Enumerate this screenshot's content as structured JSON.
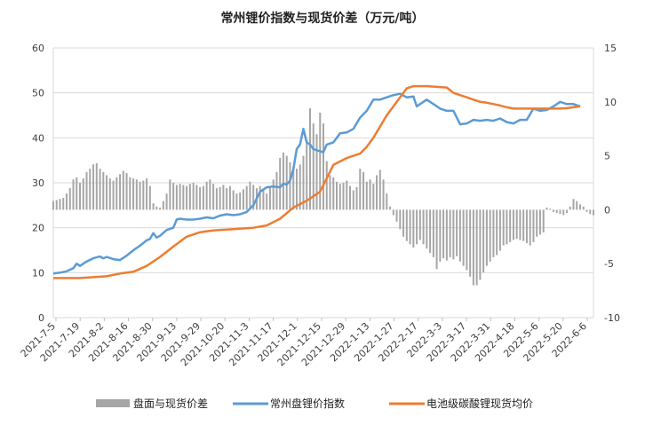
{
  "chart_data": {
    "type": "combo",
    "title": "常州锂价指数与现货价差（万元/吨）",
    "x_tick_labels": [
      "2021-7-5",
      "2021-7-19",
      "2021-8-2",
      "2021-8-16",
      "2021-8-30",
      "2021-9-13",
      "2021-9-29",
      "2021-10-20",
      "2021-11-3",
      "2021-11-17",
      "2021-12-1",
      "2021-12-15",
      "2021-12-29",
      "2022-1-13",
      "2022-1-27",
      "2022-2-17",
      "2022-3-3",
      "2022-3-17",
      "2022-3-31",
      "2022-4-18",
      "2022-5-6",
      "2022-5-20",
      "2022-6-6"
    ],
    "y_left": {
      "min": 0,
      "max": 60,
      "ticks": [
        0,
        10,
        20,
        30,
        40,
        50,
        60
      ]
    },
    "y_right": {
      "min": -10,
      "max": 15,
      "ticks": [
        -10,
        -5,
        0,
        5,
        10,
        15
      ]
    },
    "grid": true,
    "legend_position": "bottom",
    "series": [
      {
        "name": "盘面与现货价差",
        "kind": "bar",
        "axis": "right",
        "color": "#a6a6a6",
        "points": [
          [
            0,
            0.8
          ],
          [
            0.5,
            0.9
          ],
          [
            1,
            1.0
          ],
          [
            1.5,
            1.1
          ],
          [
            2,
            1.5
          ],
          [
            2.5,
            2.0
          ],
          [
            3,
            2.8
          ],
          [
            3.5,
            3.0
          ],
          [
            4,
            2.5
          ],
          [
            4.5,
            2.9
          ],
          [
            5,
            3.5
          ],
          [
            5.5,
            3.8
          ],
          [
            6,
            4.2
          ],
          [
            6.5,
            4.3
          ],
          [
            7,
            3.8
          ],
          [
            7.5,
            3.5
          ],
          [
            8,
            3.2
          ],
          [
            8.5,
            2.9
          ],
          [
            9,
            2.7
          ],
          [
            9.5,
            3.0
          ],
          [
            10,
            3.3
          ],
          [
            10.5,
            3.6
          ],
          [
            11,
            3.4
          ],
          [
            11.5,
            3.0
          ],
          [
            12,
            2.9
          ],
          [
            12.5,
            2.8
          ],
          [
            13,
            2.6
          ],
          [
            13.5,
            2.7
          ],
          [
            14,
            2.9
          ],
          [
            14.5,
            2.2
          ],
          [
            15,
            0.6
          ],
          [
            15.5,
            0.3
          ],
          [
            16,
            0.2
          ],
          [
            16.5,
            0.8
          ],
          [
            17,
            1.5
          ],
          [
            17.5,
            2.8
          ],
          [
            18,
            2.5
          ],
          [
            18.5,
            2.3
          ],
          [
            19,
            2.4
          ],
          [
            19.5,
            2.3
          ],
          [
            20,
            2.2
          ],
          [
            20.5,
            2.4
          ],
          [
            21,
            2.5
          ],
          [
            21.5,
            2.3
          ],
          [
            22,
            2.1
          ],
          [
            22.5,
            2.2
          ],
          [
            23,
            2.6
          ],
          [
            23.5,
            2.8
          ],
          [
            24,
            2.4
          ],
          [
            24.5,
            2.0
          ],
          [
            25,
            2.1
          ],
          [
            25.5,
            2.3
          ],
          [
            26,
            2.0
          ],
          [
            26.5,
            2.2
          ],
          [
            27,
            1.8
          ],
          [
            27.5,
            1.5
          ],
          [
            28,
            1.6
          ],
          [
            28.5,
            1.9
          ],
          [
            29,
            2.2
          ],
          [
            29.5,
            2.6
          ],
          [
            30,
            2.3
          ],
          [
            30.5,
            2.0
          ],
          [
            31,
            2.2
          ],
          [
            31.5,
            1.8
          ],
          [
            32,
            1.5
          ],
          [
            32.5,
            2.2
          ],
          [
            33,
            2.8
          ],
          [
            33.5,
            3.5
          ],
          [
            34,
            4.8
          ],
          [
            34.5,
            5.3
          ],
          [
            35,
            5.0
          ],
          [
            35.5,
            4.4
          ],
          [
            36,
            4.0
          ],
          [
            36.5,
            3.8
          ],
          [
            37,
            4.2
          ],
          [
            37.5,
            5.0
          ],
          [
            38,
            6.5
          ],
          [
            38.5,
            9.4
          ],
          [
            39,
            8.0
          ],
          [
            39.5,
            7.0
          ],
          [
            40,
            9.0
          ],
          [
            40.5,
            8.0
          ],
          [
            41,
            4.5
          ],
          [
            41.5,
            3.2
          ],
          [
            42,
            3.0
          ],
          [
            42.5,
            2.6
          ],
          [
            43,
            2.4
          ],
          [
            43.5,
            2.5
          ],
          [
            44,
            2.7
          ],
          [
            44.5,
            2.2
          ],
          [
            45,
            1.8
          ],
          [
            45.5,
            2.1
          ],
          [
            46,
            3.8
          ],
          [
            46.5,
            3.5
          ],
          [
            47,
            2.6
          ],
          [
            47.5,
            2.8
          ],
          [
            48,
            2.4
          ],
          [
            48.5,
            3.2
          ],
          [
            49,
            3.7
          ],
          [
            49.5,
            2.8
          ],
          [
            50,
            1.5
          ],
          [
            50.5,
            0.3
          ],
          [
            51,
            -0.5
          ],
          [
            51.5,
            -1.1
          ],
          [
            52,
            -1.8
          ],
          [
            52.5,
            -2.5
          ],
          [
            53,
            -2.9
          ],
          [
            53.5,
            -3.2
          ],
          [
            54,
            -3.5
          ],
          [
            54.5,
            -3.2
          ],
          [
            55,
            -2.8
          ],
          [
            55.5,
            -3.2
          ],
          [
            56,
            -3.6
          ],
          [
            56.5,
            -4.0
          ],
          [
            57,
            -4.4
          ],
          [
            57.5,
            -5.5
          ],
          [
            58,
            -4.8
          ],
          [
            58.5,
            -4.5
          ],
          [
            59,
            -4.7
          ],
          [
            59.5,
            -4.4
          ],
          [
            60,
            -4.6
          ],
          [
            60.5,
            -4.3
          ],
          [
            61,
            -4.8
          ],
          [
            61.5,
            -5.2
          ],
          [
            62,
            -5.6
          ],
          [
            62.5,
            -6.2
          ],
          [
            63,
            -7.0
          ],
          [
            63.5,
            -7.0
          ],
          [
            64,
            -6.5
          ],
          [
            64.5,
            -5.8
          ],
          [
            65,
            -5.2
          ],
          [
            65.5,
            -4.8
          ],
          [
            66,
            -4.4
          ],
          [
            66.5,
            -4.2
          ],
          [
            67,
            -3.8
          ],
          [
            67.5,
            -3.3
          ],
          [
            68,
            -3.2
          ],
          [
            68.5,
            -3.0
          ],
          [
            69,
            -2.8
          ],
          [
            69.5,
            -2.7
          ],
          [
            70,
            -2.8
          ],
          [
            70.5,
            -2.9
          ],
          [
            71,
            -3.1
          ],
          [
            71.5,
            -3.3
          ],
          [
            72,
            -3.0
          ],
          [
            72.5,
            -2.5
          ],
          [
            73,
            -2.3
          ],
          [
            73.5,
            -2.1
          ],
          [
            74,
            0.2
          ],
          [
            74.5,
            0.1
          ],
          [
            75,
            -0.2
          ],
          [
            75.5,
            -0.3
          ],
          [
            76,
            -0.4
          ],
          [
            76.5,
            -0.5
          ],
          [
            77,
            -0.3
          ],
          [
            77.5,
            0.3
          ],
          [
            78,
            1.0
          ],
          [
            78.5,
            0.8
          ],
          [
            79,
            0.5
          ],
          [
            79.5,
            0.3
          ],
          [
            80,
            -0.2
          ],
          [
            80.5,
            -0.4
          ],
          [
            81,
            -0.5
          ]
        ]
      },
      {
        "name": "常州盘锂价指数",
        "kind": "line",
        "axis": "left",
        "color": "#5b9bd5",
        "points": [
          [
            0,
            9.8
          ],
          [
            1,
            10.0
          ],
          [
            2,
            10.3
          ],
          [
            3,
            11.0
          ],
          [
            3.5,
            12.0
          ],
          [
            4,
            11.5
          ],
          [
            5,
            12.5
          ],
          [
            6,
            13.2
          ],
          [
            7,
            13.6
          ],
          [
            7.5,
            13.2
          ],
          [
            8,
            13.5
          ],
          [
            9,
            13.0
          ],
          [
            10,
            12.8
          ],
          [
            11,
            13.8
          ],
          [
            12,
            15.0
          ],
          [
            13,
            16.0
          ],
          [
            14,
            17.2
          ],
          [
            14.5,
            17.5
          ],
          [
            15,
            18.8
          ],
          [
            15.5,
            17.8
          ],
          [
            16,
            18.2
          ],
          [
            17,
            19.5
          ],
          [
            18,
            20.0
          ],
          [
            18.5,
            21.8
          ],
          [
            19,
            22.0
          ],
          [
            20,
            21.8
          ],
          [
            21,
            21.8
          ],
          [
            22,
            22.0
          ],
          [
            23,
            22.3
          ],
          [
            24,
            22.1
          ],
          [
            25,
            22.7
          ],
          [
            26,
            23.0
          ],
          [
            27,
            22.8
          ],
          [
            28,
            23.0
          ],
          [
            29,
            23.5
          ],
          [
            30,
            25.0
          ],
          [
            31,
            28.0
          ],
          [
            32,
            29.0
          ],
          [
            33,
            29.2
          ],
          [
            34,
            29.0
          ],
          [
            34.5,
            29.8
          ],
          [
            35,
            29.6
          ],
          [
            35.5,
            30.5
          ],
          [
            36,
            33.0
          ],
          [
            36.5,
            37.5
          ],
          [
            37,
            38.5
          ],
          [
            37.5,
            42.0
          ],
          [
            38,
            39.0
          ],
          [
            38.5,
            38.5
          ],
          [
            39,
            37.5
          ],
          [
            40,
            37.0
          ],
          [
            40.5,
            36.8
          ],
          [
            41,
            38.5
          ],
          [
            42,
            39.0
          ],
          [
            43,
            41.0
          ],
          [
            44,
            41.2
          ],
          [
            45,
            42.0
          ],
          [
            46,
            44.5
          ],
          [
            47,
            46.0
          ],
          [
            48,
            48.5
          ],
          [
            49,
            48.5
          ],
          [
            50,
            49.0
          ],
          [
            51,
            49.5
          ],
          [
            52,
            49.8
          ],
          [
            53,
            49.0
          ],
          [
            54,
            49.2
          ],
          [
            54.5,
            47.0
          ],
          [
            55,
            47.5
          ],
          [
            56,
            48.5
          ],
          [
            57,
            47.5
          ],
          [
            58,
            46.5
          ],
          [
            59,
            46.0
          ],
          [
            60,
            46.0
          ],
          [
            61,
            43.0
          ],
          [
            62,
            43.2
          ],
          [
            63,
            44.0
          ],
          [
            64,
            43.8
          ],
          [
            65,
            44.0
          ],
          [
            66,
            43.8
          ],
          [
            67,
            44.3
          ],
          [
            68,
            43.5
          ],
          [
            69,
            43.2
          ],
          [
            70,
            44.0
          ],
          [
            71,
            44.0
          ],
          [
            72,
            46.5
          ],
          [
            73,
            46.0
          ],
          [
            74,
            46.2
          ],
          [
            75,
            47.0
          ],
          [
            76,
            48.0
          ],
          [
            77,
            47.5
          ],
          [
            78,
            47.5
          ],
          [
            79,
            47.0
          ]
        ]
      },
      {
        "name": "电池级碳酸锂现货均价",
        "kind": "line",
        "axis": "left",
        "color": "#ed7d31",
        "points": [
          [
            0,
            8.8
          ],
          [
            2,
            8.8
          ],
          [
            4,
            8.8
          ],
          [
            6,
            9.0
          ],
          [
            8,
            9.2
          ],
          [
            10,
            9.8
          ],
          [
            12,
            10.2
          ],
          [
            14,
            11.5
          ],
          [
            16,
            13.5
          ],
          [
            18,
            15.8
          ],
          [
            20,
            18.0
          ],
          [
            22,
            19.0
          ],
          [
            24,
            19.4
          ],
          [
            26,
            19.6
          ],
          [
            28,
            19.8
          ],
          [
            30,
            20.0
          ],
          [
            32,
            20.5
          ],
          [
            34,
            22.0
          ],
          [
            36,
            24.5
          ],
          [
            38,
            26.0
          ],
          [
            40,
            28.0
          ],
          [
            41,
            31.0
          ],
          [
            42,
            34.0
          ],
          [
            44,
            35.5
          ],
          [
            46,
            36.5
          ],
          [
            47,
            38.0
          ],
          [
            48,
            40.0
          ],
          [
            50,
            45.0
          ],
          [
            52,
            49.0
          ],
          [
            53,
            51.0
          ],
          [
            54,
            51.5
          ],
          [
            56,
            51.5
          ],
          [
            58,
            51.3
          ],
          [
            59,
            51.2
          ],
          [
            60,
            50.0
          ],
          [
            61,
            49.5
          ],
          [
            62,
            49.0
          ],
          [
            63,
            48.5
          ],
          [
            64,
            48.0
          ],
          [
            65,
            47.8
          ],
          [
            66,
            47.5
          ],
          [
            67,
            47.2
          ],
          [
            68,
            46.8
          ],
          [
            69,
            46.5
          ],
          [
            70,
            46.5
          ],
          [
            72,
            46.5
          ],
          [
            74,
            46.5
          ],
          [
            76,
            46.5
          ],
          [
            77,
            46.6
          ],
          [
            78,
            46.8
          ],
          [
            79,
            47.0
          ]
        ]
      }
    ]
  }
}
